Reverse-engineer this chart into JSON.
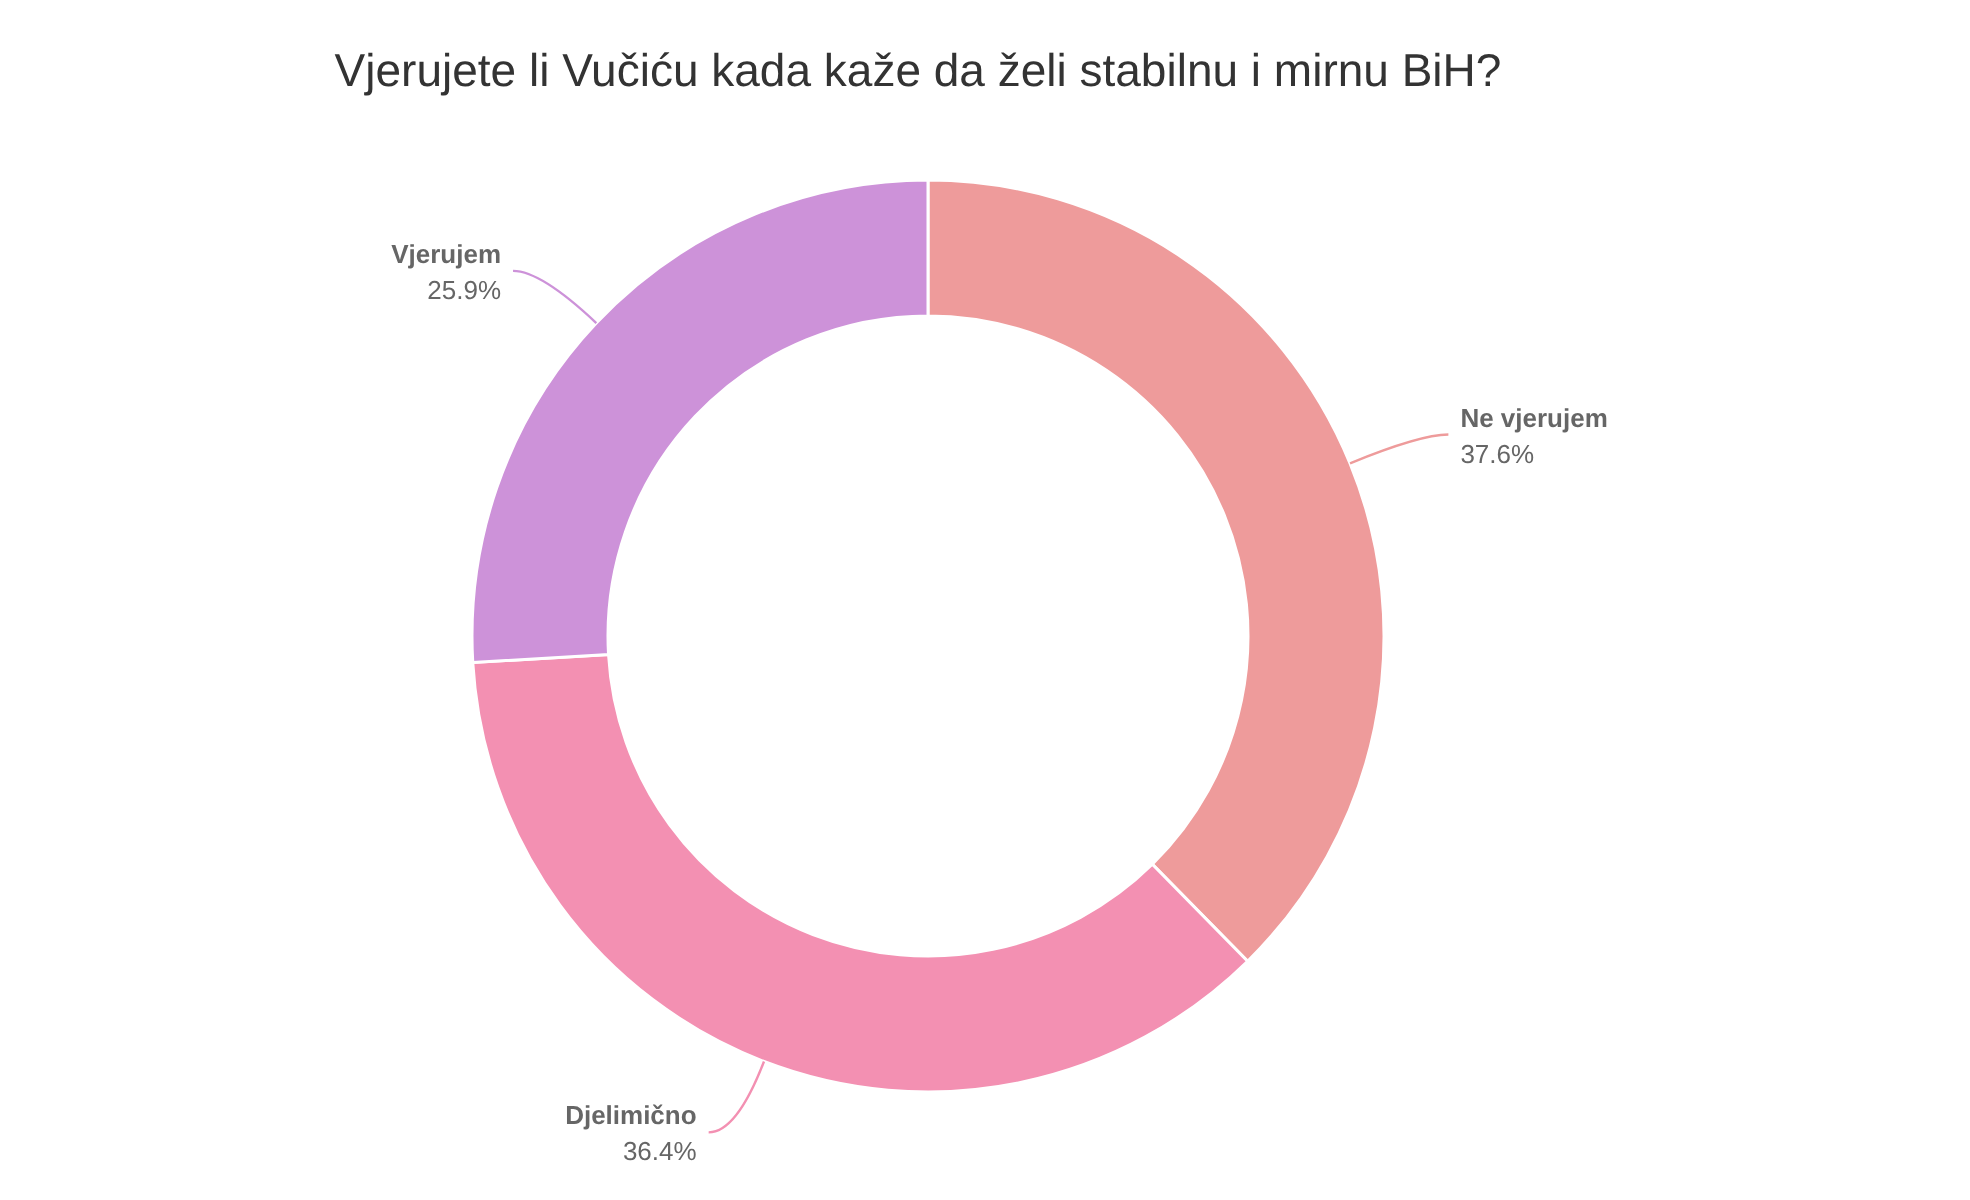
{
  "chart_data": {
    "type": "donut",
    "title": "Vjerujete li Vučiću kada kaže da želi stabilnu i mirnu BiH?",
    "categories": [
      "Ne vjerujem",
      "Djelimično",
      "Vjerujem"
    ],
    "values": [
      37.6,
      36.4,
      25.9
    ],
    "value_labels": [
      "37.6%",
      "36.4%",
      "25.9%"
    ],
    "colors": [
      "#ee9b9b",
      "#f390b2",
      "#cd92d9"
    ]
  }
}
